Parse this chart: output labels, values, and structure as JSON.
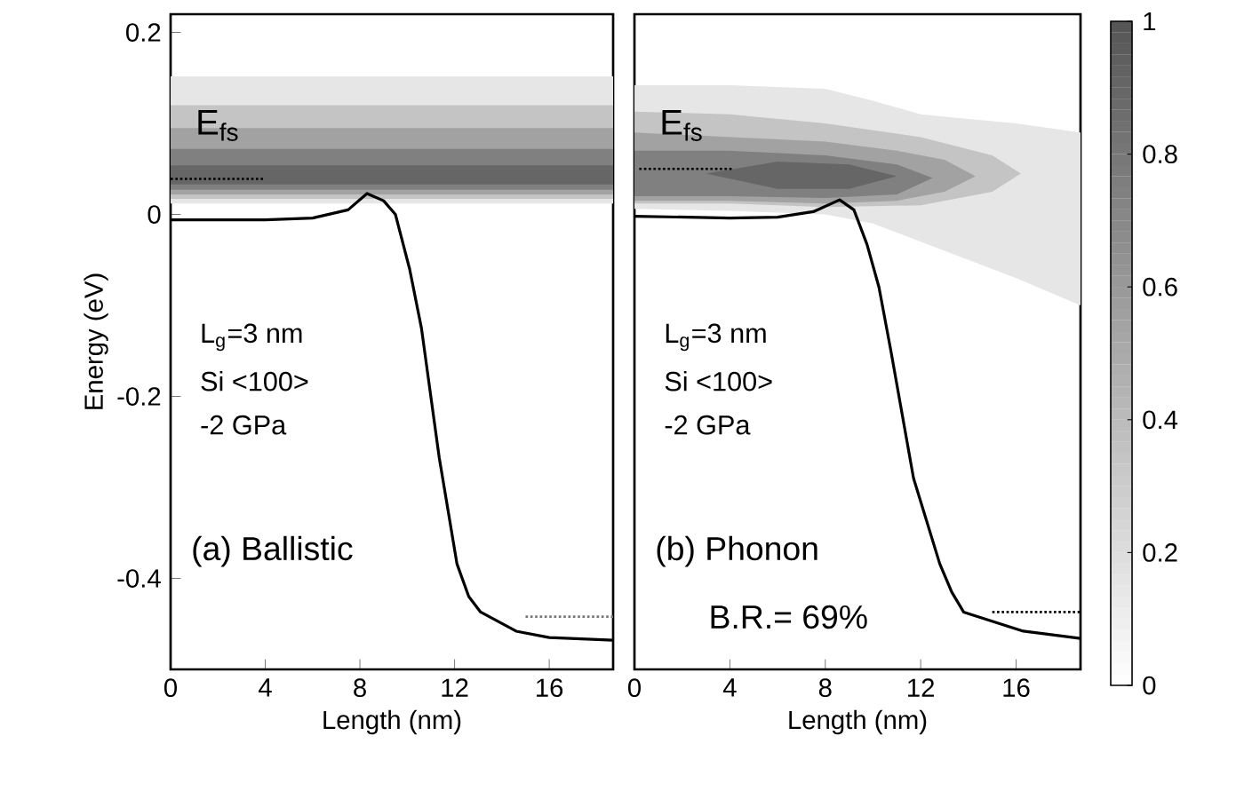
{
  "chart_data": [
    {
      "type": "line",
      "xlabel": "Length (nm)",
      "ylabel": "Energy (eV)",
      "xlim": [
        0,
        18.7
      ],
      "ylim": [
        -0.5,
        0.22
      ],
      "xticks": [
        0,
        4,
        8,
        12,
        16
      ],
      "yticks": [
        0.2,
        0,
        -0.2,
        -0.4
      ],
      "bands": [
        {
          "axis": "y",
          "from": 0.012,
          "to": 0.152,
          "color": "#e6e6e6"
        },
        {
          "axis": "y",
          "from": 0.017,
          "to": 0.12,
          "color": "#c4c4c4"
        },
        {
          "axis": "y",
          "from": 0.022,
          "to": 0.095,
          "color": "#a2a2a2"
        },
        {
          "axis": "y",
          "from": 0.027,
          "to": 0.072,
          "color": "#808080"
        },
        {
          "axis": "y",
          "from": 0.033,
          "to": 0.054,
          "color": "#666666"
        }
      ],
      "series": [
        {
          "type": "line",
          "color": "#000000",
          "x": [
            0,
            4,
            6,
            7.5,
            8.3,
            9,
            9.5,
            10.1,
            10.6,
            11.35,
            12.1,
            12.6,
            13.1,
            14.6,
            16,
            18.7
          ],
          "values": [
            -0.006,
            -0.006,
            -0.004,
            0.005,
            0.023,
            0.015,
            0.0,
            -0.06,
            -0.125,
            -0.267,
            -0.384,
            -0.42,
            -0.437,
            -0.458,
            -0.465,
            -0.468
          ]
        },
        {
          "type": "line",
          "line_style": "dotted",
          "color": "#000000",
          "x": [
            0,
            4
          ],
          "values": [
            0.039,
            0.039
          ]
        },
        {
          "type": "line",
          "line_style": "dotted",
          "color": "#777777",
          "x": [
            15,
            18.7
          ],
          "values": [
            -0.442,
            -0.442
          ]
        }
      ],
      "annotations": [
        "E$_{fs}$",
        "L$_{g}$=3 nm",
        "Si <100>",
        "-2 GPa",
        "(a) Ballistic"
      ]
    },
    {
      "type": "line",
      "xlabel": "Length (nm)",
      "xlim": [
        0,
        18.7
      ],
      "ylim": [
        -0.5,
        0.22
      ],
      "xticks": [
        0,
        4,
        8,
        12,
        16
      ],
      "tick_labels": "x",
      "clim": [
        0,
        1
      ],
      "cticks": [
        0,
        0.2,
        0.4,
        0.6,
        0.8,
        1
      ],
      "series": [
        {
          "type": "area",
          "color": "#e6e6e6",
          "x": [
            0,
            4,
            8,
            10,
            12,
            14,
            16,
            18.7,
            18.7,
            16,
            14,
            12,
            10,
            8,
            4,
            0
          ],
          "values": [
            0.142,
            0.142,
            0.138,
            0.125,
            0.11,
            0.105,
            0.1,
            0.09,
            -0.1,
            -0.07,
            -0.05,
            -0.03,
            -0.01,
            0.0,
            0.004,
            0.006
          ]
        },
        {
          "type": "area",
          "color": "#c4c4c4",
          "x": [
            0,
            4,
            8,
            12,
            15,
            16.2,
            15,
            12,
            8,
            4,
            0
          ],
          "values": [
            0.113,
            0.11,
            0.1,
            0.085,
            0.065,
            0.045,
            0.025,
            0.01,
            0.008,
            0.012,
            0.012
          ]
        },
        {
          "type": "area",
          "color": "#a2a2a2",
          "x": [
            0,
            8,
            11,
            13,
            14.3,
            13,
            11,
            8,
            4,
            0
          ],
          "values": [
            0.09,
            0.08,
            0.07,
            0.06,
            0.042,
            0.025,
            0.015,
            0.012,
            0.015,
            0.015
          ]
        },
        {
          "type": "area",
          "color": "#808080",
          "x": [
            0,
            4,
            8,
            11,
            12.5,
            11,
            8,
            4,
            0
          ],
          "values": [
            0.07,
            0.07,
            0.065,
            0.055,
            0.04,
            0.022,
            0.018,
            0.02,
            0.02
          ]
        },
        {
          "type": "area",
          "color": "#666666",
          "x": [
            3,
            6,
            9,
            11,
            9,
            6
          ],
          "values": [
            0.045,
            0.058,
            0.055,
            0.042,
            0.028,
            0.028
          ]
        },
        {
          "type": "line",
          "color": "#000000",
          "x": [
            0,
            4,
            6,
            7.5,
            8.6,
            9.2,
            9.75,
            10.25,
            10.75,
            11.7,
            12.8,
            13.3,
            13.8,
            16.3,
            18.7
          ],
          "values": [
            -0.002,
            -0.004,
            -0.003,
            0.003,
            0.016,
            0.005,
            -0.033,
            -0.08,
            -0.15,
            -0.29,
            -0.384,
            -0.415,
            -0.437,
            -0.458,
            -0.466
          ]
        },
        {
          "type": "line",
          "line_style": "dotted",
          "color": "#000000",
          "x": [
            0.2,
            4.1
          ],
          "values": [
            0.05,
            0.05
          ]
        },
        {
          "type": "line",
          "line_style": "dotted",
          "color": "#000000",
          "x": [
            15,
            18.7
          ],
          "values": [
            -0.437,
            -0.437
          ]
        }
      ],
      "annotations": [
        "E$_{fs}$",
        "L$_{g}$=3 nm",
        "Si <100>",
        "-2 GPa",
        "(b) Phonon",
        "B.R.= 69%"
      ]
    }
  ]
}
